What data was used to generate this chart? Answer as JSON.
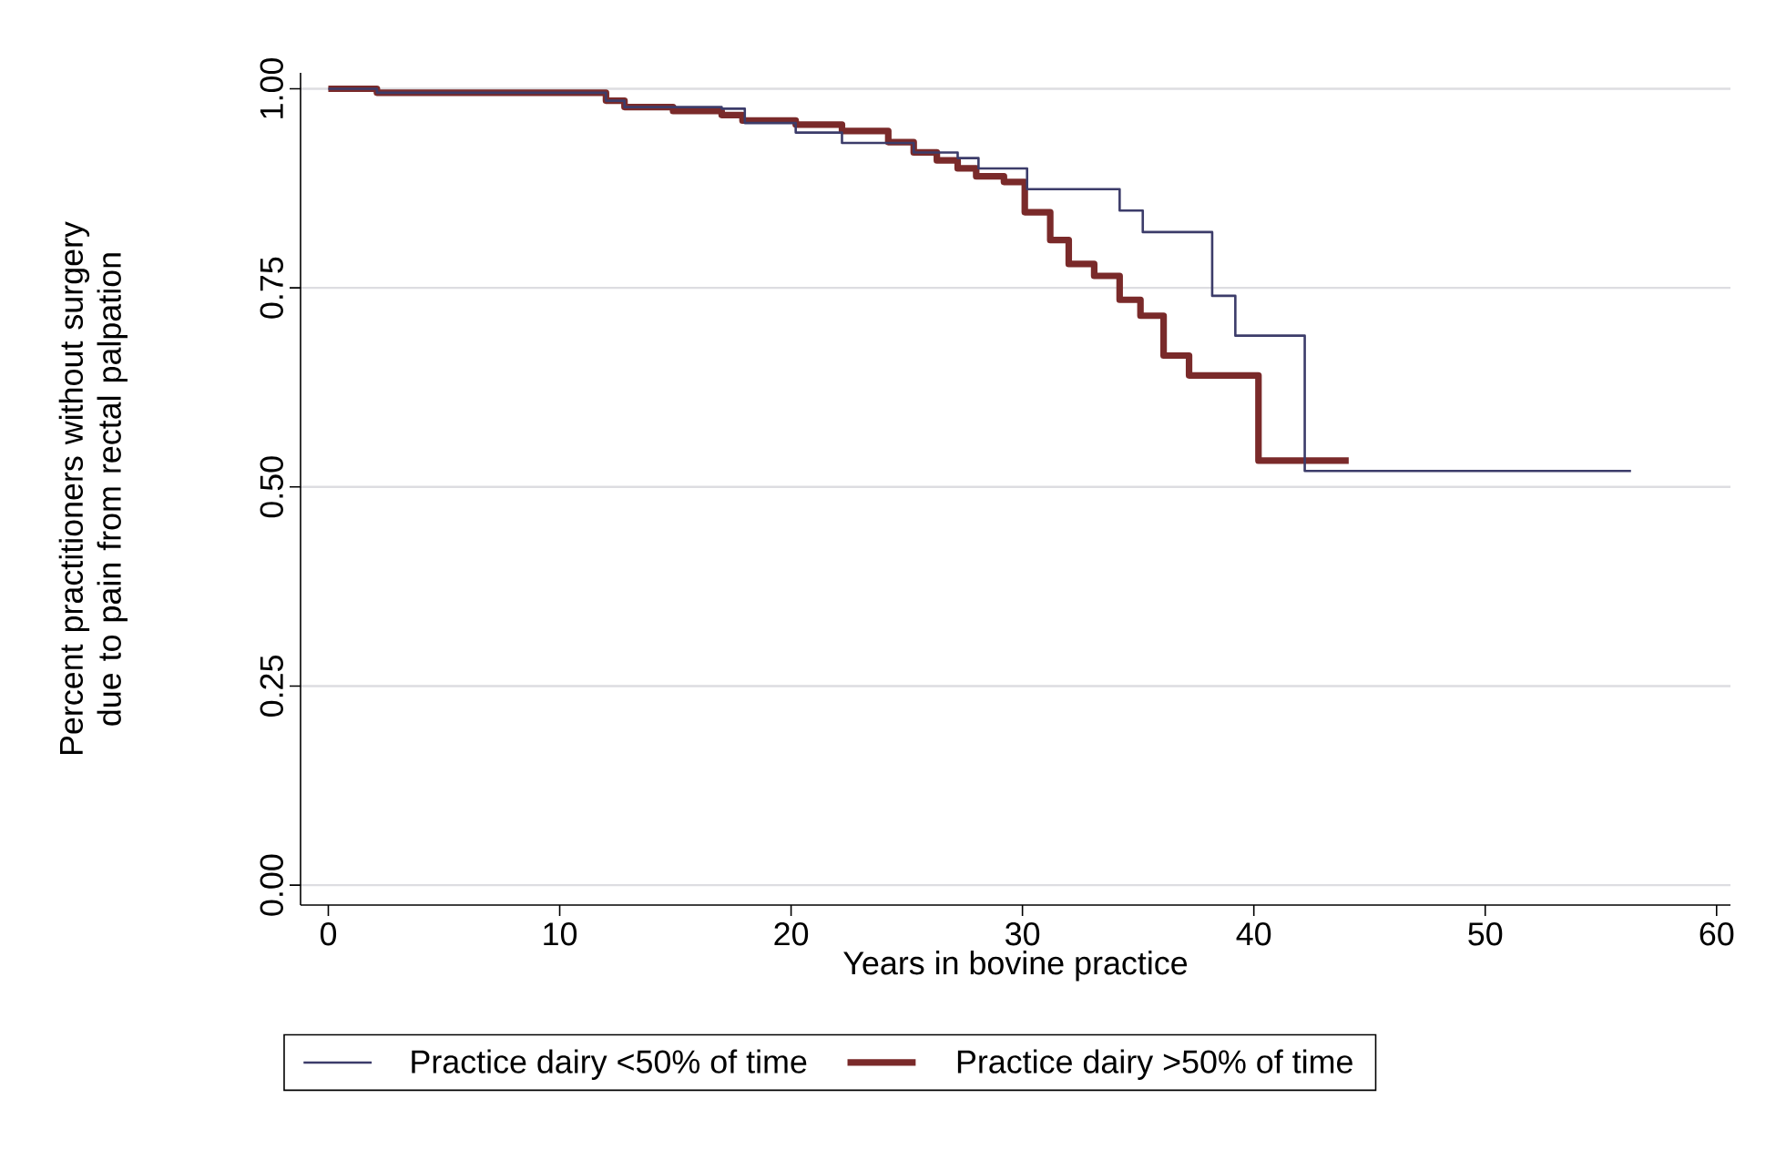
{
  "chart_data": {
    "type": "step",
    "xlabel": "Years in bovine practice",
    "ylabel": "Percent practitioners without surgery due to pain from rectal palpation",
    "xlim": [
      -1.2,
      60.6
    ],
    "ylim": [
      -0.025,
      1.02
    ],
    "xticks": [
      0,
      10,
      20,
      30,
      40,
      50,
      60
    ],
    "yticks": [
      {
        "value": 0,
        "label": "0.00"
      },
      {
        "value": 0.25,
        "label": "0.25"
      },
      {
        "value": 0.5,
        "label": "0.50"
      },
      {
        "value": 0.75,
        "label": "0.75"
      },
      {
        "value": 1,
        "label": "1.00"
      }
    ],
    "grid": "y",
    "legend": "bottom",
    "series": [
      {
        "name": "Practice dairy <50% of time",
        "color": "#3c3c6a",
        "x": [
          0,
          2.1,
          12,
          12.8,
          17,
          18,
          20.2,
          22.2,
          25.3,
          27.2,
          28.1,
          30.2,
          34.2,
          35.2,
          38.2,
          39.2,
          42.2,
          56.3
        ],
        "values": [
          1.0,
          0.995,
          0.985,
          0.977,
          0.975,
          0.957,
          0.945,
          0.932,
          0.92,
          0.913,
          0.9,
          0.874,
          0.847,
          0.82,
          0.74,
          0.69,
          0.52,
          0.52
        ]
      },
      {
        "name": "Practice dairy >50% of time",
        "color": "#7a2a2a",
        "x": [
          0,
          2.1,
          12,
          12.8,
          14.9,
          17,
          17.9,
          20.2,
          22.2,
          24.2,
          25.3,
          26.3,
          27.2,
          28,
          29.2,
          30.1,
          31.2,
          32,
          33.1,
          34.2,
          35.1,
          36.1,
          37.2,
          40.2,
          44.1
        ],
        "values": [
          1.0,
          0.995,
          0.985,
          0.977,
          0.972,
          0.967,
          0.96,
          0.955,
          0.947,
          0.933,
          0.92,
          0.91,
          0.9,
          0.89,
          0.883,
          0.845,
          0.81,
          0.78,
          0.765,
          0.735,
          0.715,
          0.665,
          0.64,
          0.533,
          0.533
        ]
      }
    ]
  }
}
